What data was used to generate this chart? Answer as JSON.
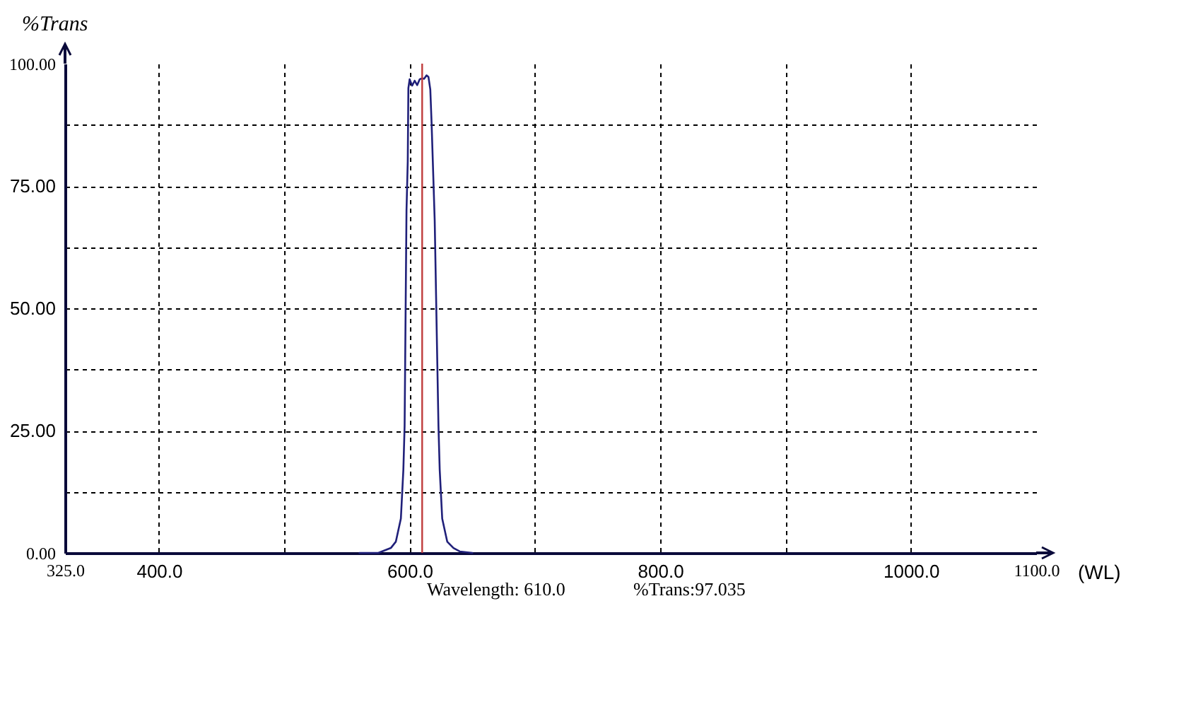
{
  "chart_data": {
    "type": "line",
    "ylabel": "%Trans",
    "xlabel": "(WL)",
    "x": [
      560,
      575,
      580,
      585,
      589,
      593,
      595,
      596,
      597.5,
      598.5,
      599,
      600,
      602,
      604,
      606,
      608,
      610,
      611.5,
      613.5,
      615,
      616.5,
      617.5,
      618.5,
      620,
      623,
      624,
      626,
      630,
      635,
      640,
      650
    ],
    "series": [
      {
        "color": "#20207a",
        "values": [
          0,
          0,
          0.5,
          1,
          2.3,
          7,
          17,
          26,
          70,
          80,
          95,
          96.8,
          95.5,
          96.5,
          95.6,
          96.8,
          97,
          96.9,
          97.6,
          97.3,
          94.7,
          88,
          80,
          68,
          26,
          17,
          7,
          2.3,
          1,
          0.3,
          0
        ]
      }
    ],
    "xlim": [
      325,
      1100
    ],
    "ylim": [
      0,
      100
    ],
    "xticks": [
      {
        "value": 325,
        "label": "325.0"
      },
      {
        "value": 400,
        "label": "400.0"
      },
      {
        "value": 500,
        "label": null
      },
      {
        "value": 600,
        "label": "600.0"
      },
      {
        "value": 700,
        "label": null
      },
      {
        "value": 800,
        "label": "800.0"
      },
      {
        "value": 900,
        "label": null
      },
      {
        "value": 1000,
        "label": "1000.0"
      },
      {
        "value": 1100,
        "label": "1100.0"
      }
    ],
    "yticks": [
      {
        "value": 0,
        "label": "0.00"
      },
      {
        "value": 12.5,
        "label": null
      },
      {
        "value": 25,
        "label": "25.00"
      },
      {
        "value": 37.5,
        "label": null
      },
      {
        "value": 50,
        "label": "50.00"
      },
      {
        "value": 62.5,
        "label": null
      },
      {
        "value": 75,
        "label": "75.00"
      },
      {
        "value": 87.5,
        "label": null
      },
      {
        "value": 100,
        "label": "100.00"
      }
    ],
    "grid": true,
    "ref_lines": [
      {
        "axis": "x",
        "value": 610,
        "color": "#c03c3c"
      }
    ],
    "annotations": [
      "Wavelength: 610.0",
      "%Trans:97.035"
    ]
  }
}
